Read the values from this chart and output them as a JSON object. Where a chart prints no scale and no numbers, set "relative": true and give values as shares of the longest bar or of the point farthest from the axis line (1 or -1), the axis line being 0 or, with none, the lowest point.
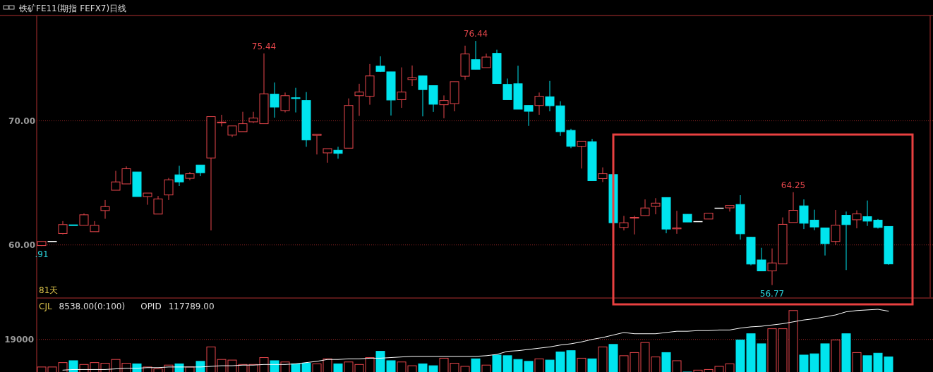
{
  "chart_data": [
    {
      "type": "candlestick",
      "title": "铁矿FE11(期指 FEFX7)日线",
      "tick_labels": "y",
      "grid": "y",
      "categories": [
        null,
        null,
        null,
        null,
        null,
        null,
        null,
        null,
        null,
        null,
        null,
        null,
        null,
        null,
        null,
        null,
        null,
        null,
        null,
        null,
        null,
        null,
        null,
        null,
        null,
        null,
        null,
        null,
        null,
        null,
        null,
        null,
        null,
        null,
        null,
        null,
        null,
        null,
        null,
        null,
        null,
        null,
        null,
        null,
        null,
        null,
        null,
        null,
        null,
        null,
        null,
        null,
        null,
        null,
        null,
        null,
        null,
        null,
        null,
        null,
        null,
        null,
        null,
        null,
        null,
        null,
        null,
        null,
        null,
        null,
        null,
        null,
        null,
        null,
        null,
        null,
        null,
        null,
        null,
        null,
        null
      ],
      "ylim": [
        55.78,
        78.49
      ],
      "yticks": [
        {
          "value": 70,
          "label": "70.00"
        },
        {
          "value": 60,
          "label": "60.00"
        }
      ],
      "ohlc": [
        [
          59.95,
          60.28,
          59.91,
          60.28
        ],
        [
          60.28,
          60.28,
          60.28,
          60.28
        ],
        [
          60.92,
          61.92,
          60.85,
          61.64
        ],
        [
          61.62,
          61.62,
          61.58,
          61.58
        ],
        [
          61.58,
          62.54,
          61.58,
          62.43
        ],
        [
          61.07,
          61.92,
          61.07,
          61.58
        ],
        [
          62.77,
          63.62,
          62.11,
          63.09
        ],
        [
          64.41,
          65.97,
          64.41,
          65.08
        ],
        [
          64.92,
          66.33,
          64.92,
          66.14
        ],
        [
          65.88,
          65.88,
          63.9,
          63.9
        ],
        [
          63.9,
          64.18,
          63.24,
          64.18
        ],
        [
          62.49,
          63.95,
          62.49,
          63.71
        ],
        [
          64.03,
          65.4,
          63.62,
          65.25
        ],
        [
          65.65,
          66.38,
          64.75,
          65.08
        ],
        [
          65.37,
          65.88,
          65.22,
          65.74
        ],
        [
          66.44,
          66.44,
          65.54,
          65.82
        ],
        [
          67.01,
          70.34,
          61.17,
          70.34
        ],
        [
          69.88,
          70.49,
          69.55,
          69.9
        ],
        [
          68.85,
          69.59,
          68.7,
          69.59
        ],
        [
          69.13,
          70.73,
          69.13,
          69.77
        ],
        [
          69.92,
          70.73,
          69.83,
          70.23
        ],
        [
          69.77,
          75.44,
          69.77,
          72.18
        ],
        [
          72.15,
          73.09,
          70.26,
          71.11
        ],
        [
          70.83,
          72.28,
          70.68,
          72.03
        ],
        [
          71.86,
          72.66,
          70.68,
          71.8
        ],
        [
          71.64,
          72.32,
          67.91,
          68.46
        ],
        [
          68.83,
          68.93,
          67.29,
          68.93
        ],
        [
          67.42,
          67.76,
          66.63,
          67.76
        ],
        [
          67.63,
          67.91,
          66.95,
          67.38
        ],
        [
          67.8,
          71.81,
          67.8,
          71.24
        ],
        [
          72.03,
          72.99,
          70.4,
          72.32
        ],
        [
          71.98,
          74.58,
          71.3,
          73.62
        ],
        [
          74.41,
          75.2,
          73.94,
          73.99
        ],
        [
          73.95,
          73.95,
          70.43,
          71.68
        ],
        [
          71.71,
          74.31,
          71.05,
          72.32
        ],
        [
          73.33,
          74.46,
          72.81,
          73.47
        ],
        [
          73.62,
          73.62,
          70.36,
          72.52
        ],
        [
          72.84,
          72.84,
          70.72,
          71.34
        ],
        [
          71.3,
          72.05,
          70.21,
          71.64
        ],
        [
          71.39,
          73.16,
          70.77,
          73.16
        ],
        [
          73.6,
          76.06,
          73.31,
          75.39
        ],
        [
          74.93,
          76.44,
          74.16,
          74.16
        ],
        [
          74.29,
          75.42,
          74.29,
          75.14
        ],
        [
          75.44,
          75.73,
          73.01,
          73.01
        ],
        [
          72.94,
          73.41,
          71.71,
          71.71
        ],
        [
          72.99,
          74.44,
          70.94,
          70.94
        ],
        [
          71.24,
          71.24,
          69.59,
          70.77
        ],
        [
          71.24,
          72.28,
          70.49,
          71.98
        ],
        [
          71.94,
          73.22,
          70.77,
          71.22
        ],
        [
          71.21,
          71.58,
          68.79,
          69.13
        ],
        [
          69.23,
          69.36,
          67.8,
          67.95
        ],
        [
          67.95,
          68.36,
          66.16,
          68.36
        ],
        [
          68.32,
          68.55,
          65.18,
          65.18
        ],
        [
          65.35,
          66.25,
          65.07,
          65.74
        ],
        [
          65.67,
          65.67,
          61.79,
          61.79
        ],
        [
          61.41,
          62.34,
          61.17,
          61.79
        ],
        [
          62.18,
          62.35,
          60.85,
          62.22
        ],
        [
          62.37,
          63.67,
          62.37,
          62.98
        ],
        [
          63.11,
          63.77,
          62.47,
          63.37
        ],
        [
          63.82,
          63.82,
          60.94,
          61.28
        ],
        [
          61.3,
          62.75,
          60.9,
          61.37
        ],
        [
          62.47,
          62.47,
          61.85,
          61.85
        ],
        [
          61.88,
          61.88,
          61.88,
          61.88
        ],
        [
          62.09,
          62.56,
          62.09,
          62.56
        ],
        [
          62.96,
          62.96,
          62.96,
          62.96
        ],
        [
          62.99,
          63.18,
          62.69,
          63.18
        ],
        [
          63.26,
          64.01,
          60.43,
          60.9
        ],
        [
          60.62,
          60.66,
          58.36,
          58.46
        ],
        [
          58.79,
          59.77,
          57.91,
          57.91
        ],
        [
          57.91,
          59.72,
          56.77,
          58.55
        ],
        [
          58.47,
          62.22,
          58.47,
          61.66
        ],
        [
          61.81,
          64.25,
          61.81,
          62.79
        ],
        [
          63.15,
          63.67,
          61.28,
          61.75
        ],
        [
          62.0,
          62.84,
          61.19,
          61.45
        ],
        [
          61.37,
          61.37,
          59.15,
          60.11
        ],
        [
          60.28,
          62.82,
          60.0,
          61.6
        ],
        [
          62.39,
          62.69,
          57.98,
          61.64
        ],
        [
          62.03,
          62.79,
          61.34,
          62.5
        ],
        [
          62.28,
          63.58,
          61.53,
          61.92
        ],
        [
          62.0,
          62.09,
          61.32,
          61.41
        ],
        [
          61.49,
          61.49,
          58.4,
          58.47
        ]
      ],
      "colors": [
        "#e8474c",
        "#ffffff",
        "#e8474c",
        "#00e4ee",
        "#e8474c",
        "#e8474c",
        "#e8474c",
        "#e8474c",
        "#e8474c",
        "#00e4ee",
        "#e8474c",
        "#e8474c",
        "#e8474c",
        "#00e4ee",
        "#e8474c",
        "#00e4ee",
        "#e8474c",
        "#e8474c",
        "#e8474c",
        "#e8474c",
        "#e8474c",
        "#e8474c",
        "#00e4ee",
        "#e8474c",
        "#00e4ee",
        "#00e4ee",
        "#e8474c",
        "#e8474c",
        "#00e4ee",
        "#e8474c",
        "#e8474c",
        "#e8474c",
        "#00e4ee",
        "#00e4ee",
        "#e8474c",
        "#e8474c",
        "#00e4ee",
        "#00e4ee",
        "#e8474c",
        "#e8474c",
        "#e8474c",
        "#00e4ee",
        "#e8474c",
        "#00e4ee",
        "#00e4ee",
        "#00e4ee",
        "#00e4ee",
        "#e8474c",
        "#00e4ee",
        "#00e4ee",
        "#00e4ee",
        "#e8474c",
        "#00e4ee",
        "#e8474c",
        "#00e4ee",
        "#e8474c",
        "#e8474c",
        "#e8474c",
        "#e8474c",
        "#00e4ee",
        "#e8474c",
        "#00e4ee",
        "#ffffff",
        "#e8474c",
        "#ffffff",
        "#e8474c",
        "#00e4ee",
        "#00e4ee",
        "#00e4ee",
        "#e8474c",
        "#e8474c",
        "#e8474c",
        "#00e4ee",
        "#00e4ee",
        "#00e4ee",
        "#e8474c",
        "#00e4ee",
        "#e8474c",
        "#00e4ee",
        "#00e4ee",
        "#00e4ee"
      ],
      "annotations": [
        {
          "text": "75.44",
          "y": 75.44
        },
        {
          "text": "76.44",
          "y": 76.44
        },
        {
          "text": "64.25",
          "y": 64.25
        },
        {
          "text": "56.77",
          "y": 56.77
        },
        {
          "text": ".91",
          "y": 59.91
        },
        "81天"
      ]
    },
    {
      "type": "bar",
      "relative": true,
      "categories": [
        null,
        null,
        null,
        null,
        null,
        null,
        null,
        null,
        null,
        null,
        null,
        null,
        null,
        null,
        null,
        null,
        null,
        null,
        null,
        null,
        null,
        null,
        null,
        null,
        null,
        null,
        null,
        null,
        null,
        null,
        null,
        null,
        null,
        null,
        null,
        null,
        null,
        null,
        null,
        null,
        null,
        null,
        null,
        null,
        null,
        null,
        null,
        null,
        null,
        null,
        null,
        null,
        null,
        null,
        null,
        null,
        null,
        null,
        null,
        null,
        null,
        null,
        null,
        null,
        null,
        null,
        null,
        null,
        null,
        null,
        null,
        null,
        null,
        null,
        null,
        null,
        null,
        null,
        null,
        null,
        null
      ],
      "series": [
        {
          "type": "bar",
          "values": [
            0.08,
            0.08,
            0.15,
            0.18,
            0.12,
            0.15,
            0.14,
            0.2,
            0.14,
            0.13,
            0.08,
            0.05,
            0.11,
            0.13,
            0.08,
            0.17,
            0.4,
            0.2,
            0.19,
            0.12,
            0.12,
            0.23,
            0.18,
            0.16,
            0.13,
            0.14,
            0.13,
            0.21,
            0.13,
            0.16,
            0.12,
            0.23,
            0.33,
            0.18,
            0.16,
            0.1,
            0.13,
            0.1,
            0.22,
            0.14,
            0.09,
            0.21,
            0.11,
            0.27,
            0.26,
            0.2,
            0.17,
            0.21,
            0.19,
            0.32,
            0.34,
            0.22,
            0.21,
            0.4,
            0.44,
            0.26,
            0.31,
            0.47,
            0.24,
            0.31,
            0.18,
            0,
            0.03,
            0.04,
            0.09,
            0.13,
            0.51,
            0.61,
            0.45,
            0.69,
            0.69,
            0.98,
            0.27,
            0.29,
            0.45,
            0.51,
            0.61,
            0.31,
            0.26,
            0.3,
            0.24
          ],
          "colors": [
            "#e8474c",
            "#e8474c",
            "#e8474c",
            "#00e4ee",
            "#e8474c",
            "#e8474c",
            "#e8474c",
            "#e8474c",
            "#e8474c",
            "#00e4ee",
            "#e8474c",
            "#e8474c",
            "#e8474c",
            "#00e4ee",
            "#e8474c",
            "#00e4ee",
            "#e8474c",
            "#e8474c",
            "#e8474c",
            "#e8474c",
            "#e8474c",
            "#e8474c",
            "#00e4ee",
            "#e8474c",
            "#00e4ee",
            "#00e4ee",
            "#e8474c",
            "#e8474c",
            "#00e4ee",
            "#e8474c",
            "#e8474c",
            "#e8474c",
            "#00e4ee",
            "#00e4ee",
            "#e8474c",
            "#e8474c",
            "#00e4ee",
            "#00e4ee",
            "#e8474c",
            "#e8474c",
            "#e8474c",
            "#00e4ee",
            "#e8474c",
            "#00e4ee",
            "#00e4ee",
            "#00e4ee",
            "#00e4ee",
            "#e8474c",
            "#00e4ee",
            "#00e4ee",
            "#00e4ee",
            "#e8474c",
            "#00e4ee",
            "#e8474c",
            "#00e4ee",
            "#e8474c",
            "#e8474c",
            "#e8474c",
            "#e8474c",
            "#00e4ee",
            "#e8474c",
            "#00e4ee",
            "#e8474c",
            "#e8474c",
            "#e8474c",
            "#e8474c",
            "#00e4ee",
            "#00e4ee",
            "#00e4ee",
            "#e8474c",
            "#e8474c",
            "#e8474c",
            "#00e4ee",
            "#00e4ee",
            "#00e4ee",
            "#e8474c",
            "#00e4ee",
            "#e8474c",
            "#00e4ee",
            "#00e4ee",
            "#00e4ee"
          ]
        },
        {
          "type": "line",
          "color": "#ffffff",
          "values": [
            null,
            null,
            0.03,
            0.04,
            0.04,
            0.04,
            0.04,
            0.05,
            0.06,
            0.06,
            0.07,
            0.07,
            0.08,
            0.08,
            0.08,
            0.08,
            0.09,
            0.1,
            0.1,
            0.11,
            0.11,
            0.12,
            0.12,
            0.12,
            0.13,
            0.15,
            0.17,
            0.2,
            0.2,
            0.21,
            0.21,
            0.22,
            0.22,
            0.23,
            0.24,
            0.25,
            0.25,
            0.25,
            0.25,
            0.25,
            0.25,
            0.25,
            0.26,
            0.28,
            0.33,
            0.34,
            0.36,
            0.38,
            0.4,
            0.43,
            0.45,
            0.48,
            0.52,
            0.55,
            0.59,
            0.63,
            0.61,
            0.61,
            0.61,
            0.63,
            0.65,
            0.65,
            0.66,
            0.66,
            0.67,
            0.67,
            0.7,
            0.72,
            0.73,
            0.75,
            0.77,
            0.8,
            0.83,
            0.85,
            0.88,
            0.91,
            0.96,
            0.98,
            0.99,
            1.0,
            0.97
          ]
        }
      ],
      "ref_lines": [
        {
          "axis": "y",
          "value": 0.52
        }
      ],
      "annotations": [
        "CJL",
        "8538.00(0:100)",
        "OPID",
        "117789.00",
        "19000"
      ]
    }
  ]
}
